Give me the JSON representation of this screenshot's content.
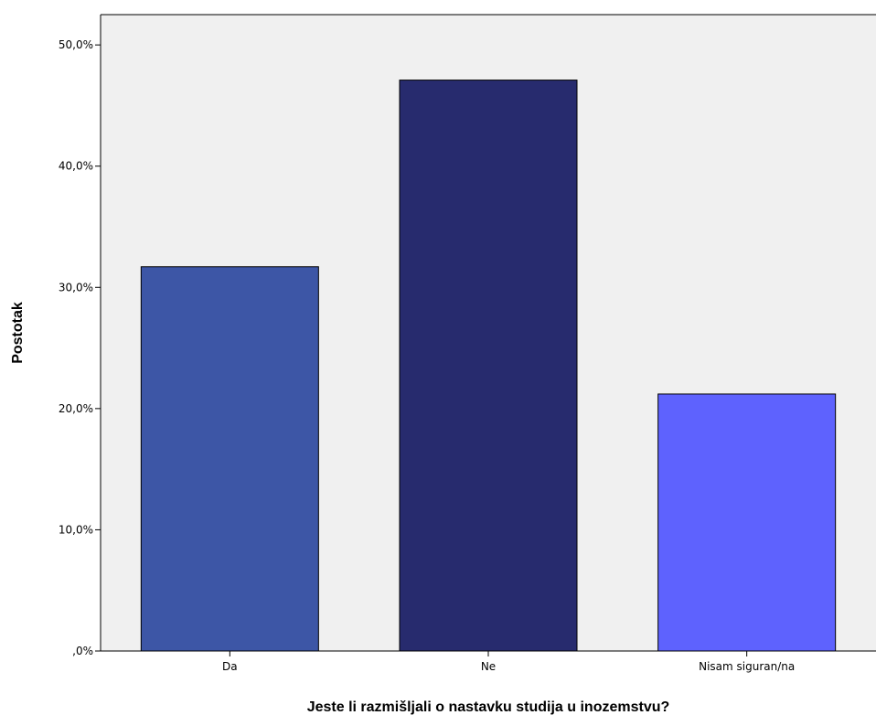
{
  "chart_data": {
    "type": "bar",
    "title": "",
    "xlabel": "Jeste li razmišljali o nastavku studija u inozemstvu?",
    "ylabel": "Postotak",
    "categories": [
      "Da",
      "Ne",
      "Nisam siguran/na"
    ],
    "values": [
      31.7,
      47.1,
      21.2
    ],
    "bar_colors": [
      "#3d56a6",
      "#272b6e",
      "#5e62fe"
    ],
    "ylim": [
      0,
      52.5
    ],
    "yticks": [
      0,
      10,
      20,
      30,
      40,
      50
    ],
    "ytick_labels": [
      ",0%",
      "10,0%",
      "20,0%",
      "30,0%",
      "40,0%",
      "50,0%"
    ],
    "plot_background": "#f0f0f0",
    "grid": false,
    "legend": "none"
  }
}
